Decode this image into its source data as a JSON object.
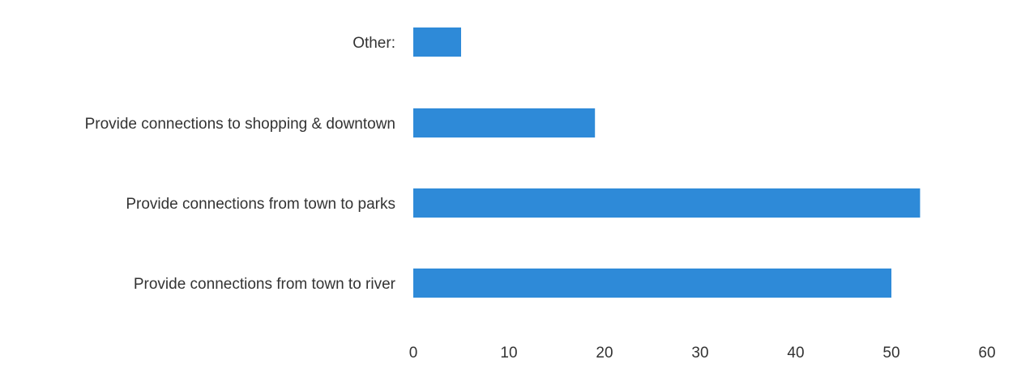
{
  "chart_data": {
    "type": "bar",
    "orientation": "horizontal",
    "title": "",
    "xlabel": "",
    "ylabel": "",
    "categories": [
      "Other:",
      "Provide connections to shopping & downtown",
      "Provide connections from town to parks",
      "Provide connections from town to river"
    ],
    "values": [
      5,
      19,
      53,
      50
    ],
    "xlim": [
      0,
      60
    ],
    "xticks": [
      "0",
      "10",
      "20",
      "30",
      "40",
      "50",
      "60"
    ],
    "grid": false,
    "legend": "none",
    "bar_color": "#2e8ad8"
  }
}
